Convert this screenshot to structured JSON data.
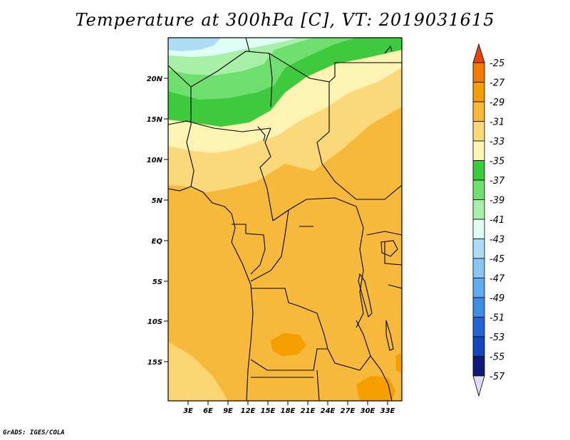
{
  "title": "Temperature at 300hPa [C], VT: 2019031615",
  "credit": "GrADS: IGES/COLA",
  "lat_labels": [
    "20N",
    "15N",
    "10N",
    "5N",
    "EQ",
    "5S",
    "10S",
    "15S"
  ],
  "lon_labels": [
    "3E",
    "6E",
    "9E",
    "12E",
    "15E",
    "18E",
    "21E",
    "24E",
    "27E",
    "30E",
    "33E"
  ],
  "colorbar": {
    "labels": [
      "-25",
      "-27",
      "-29",
      "-31",
      "-33",
      "-35",
      "-37",
      "-39",
      "-41",
      "-43",
      "-45",
      "-47",
      "-49",
      "-51",
      "-53",
      "-55",
      "-57"
    ],
    "colors": [
      "#e8440a",
      "#f47a00",
      "#f59e00",
      "#f7b93c",
      "#fbd97a",
      "#fdf3b2",
      "#3ec93e",
      "#6fe06f",
      "#a8f0a8",
      "#dffff4",
      "#aedcf5",
      "#8ac6f2",
      "#62aaf0",
      "#3f8be8",
      "#2266d4",
      "#1446b8",
      "#0d1a7a",
      "#dcdcf6"
    ]
  },
  "regions": {
    "dominant_field": "-29 to -31",
    "warmest_patch": "-27 to -29",
    "coolest_area": "-41 to -43"
  }
}
